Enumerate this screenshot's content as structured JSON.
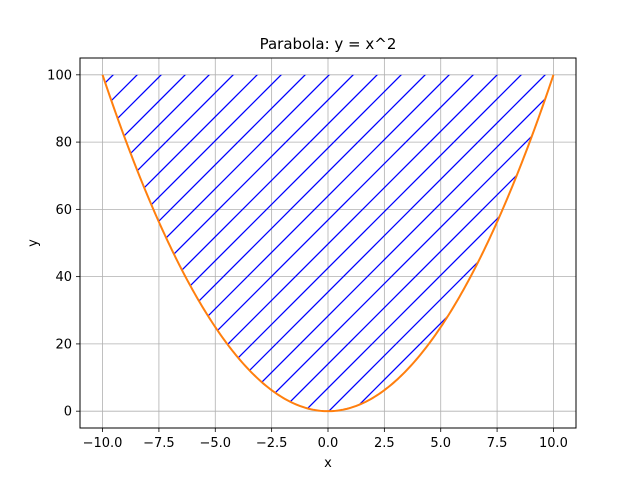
{
  "chart_data": {
    "type": "line",
    "title": "Parabola: y = x^2",
    "xlabel": "x",
    "ylabel": "y",
    "xlim": [
      -11,
      11
    ],
    "ylim": [
      -5,
      105
    ],
    "grid": true,
    "xticks": [
      -10.0,
      -7.5,
      -5.0,
      -2.5,
      0.0,
      2.5,
      5.0,
      7.5,
      10.0
    ],
    "xtick_labels": [
      "−10.0",
      "−7.5",
      "−5.0",
      "−2.5",
      "0.0",
      "2.5",
      "5.0",
      "7.5",
      "10.0"
    ],
    "yticks": [
      0,
      20,
      40,
      60,
      80,
      100
    ],
    "ytick_labels": [
      "0",
      "20",
      "40",
      "60",
      "80",
      "100"
    ],
    "series": [
      {
        "function": "x^2",
        "x_range": [
          -10,
          10
        ],
        "color": "#ff7f0e",
        "fill": "hatch",
        "fill_between": [
          0,
          100
        ],
        "hatch_color": "#0000ff"
      }
    ]
  }
}
